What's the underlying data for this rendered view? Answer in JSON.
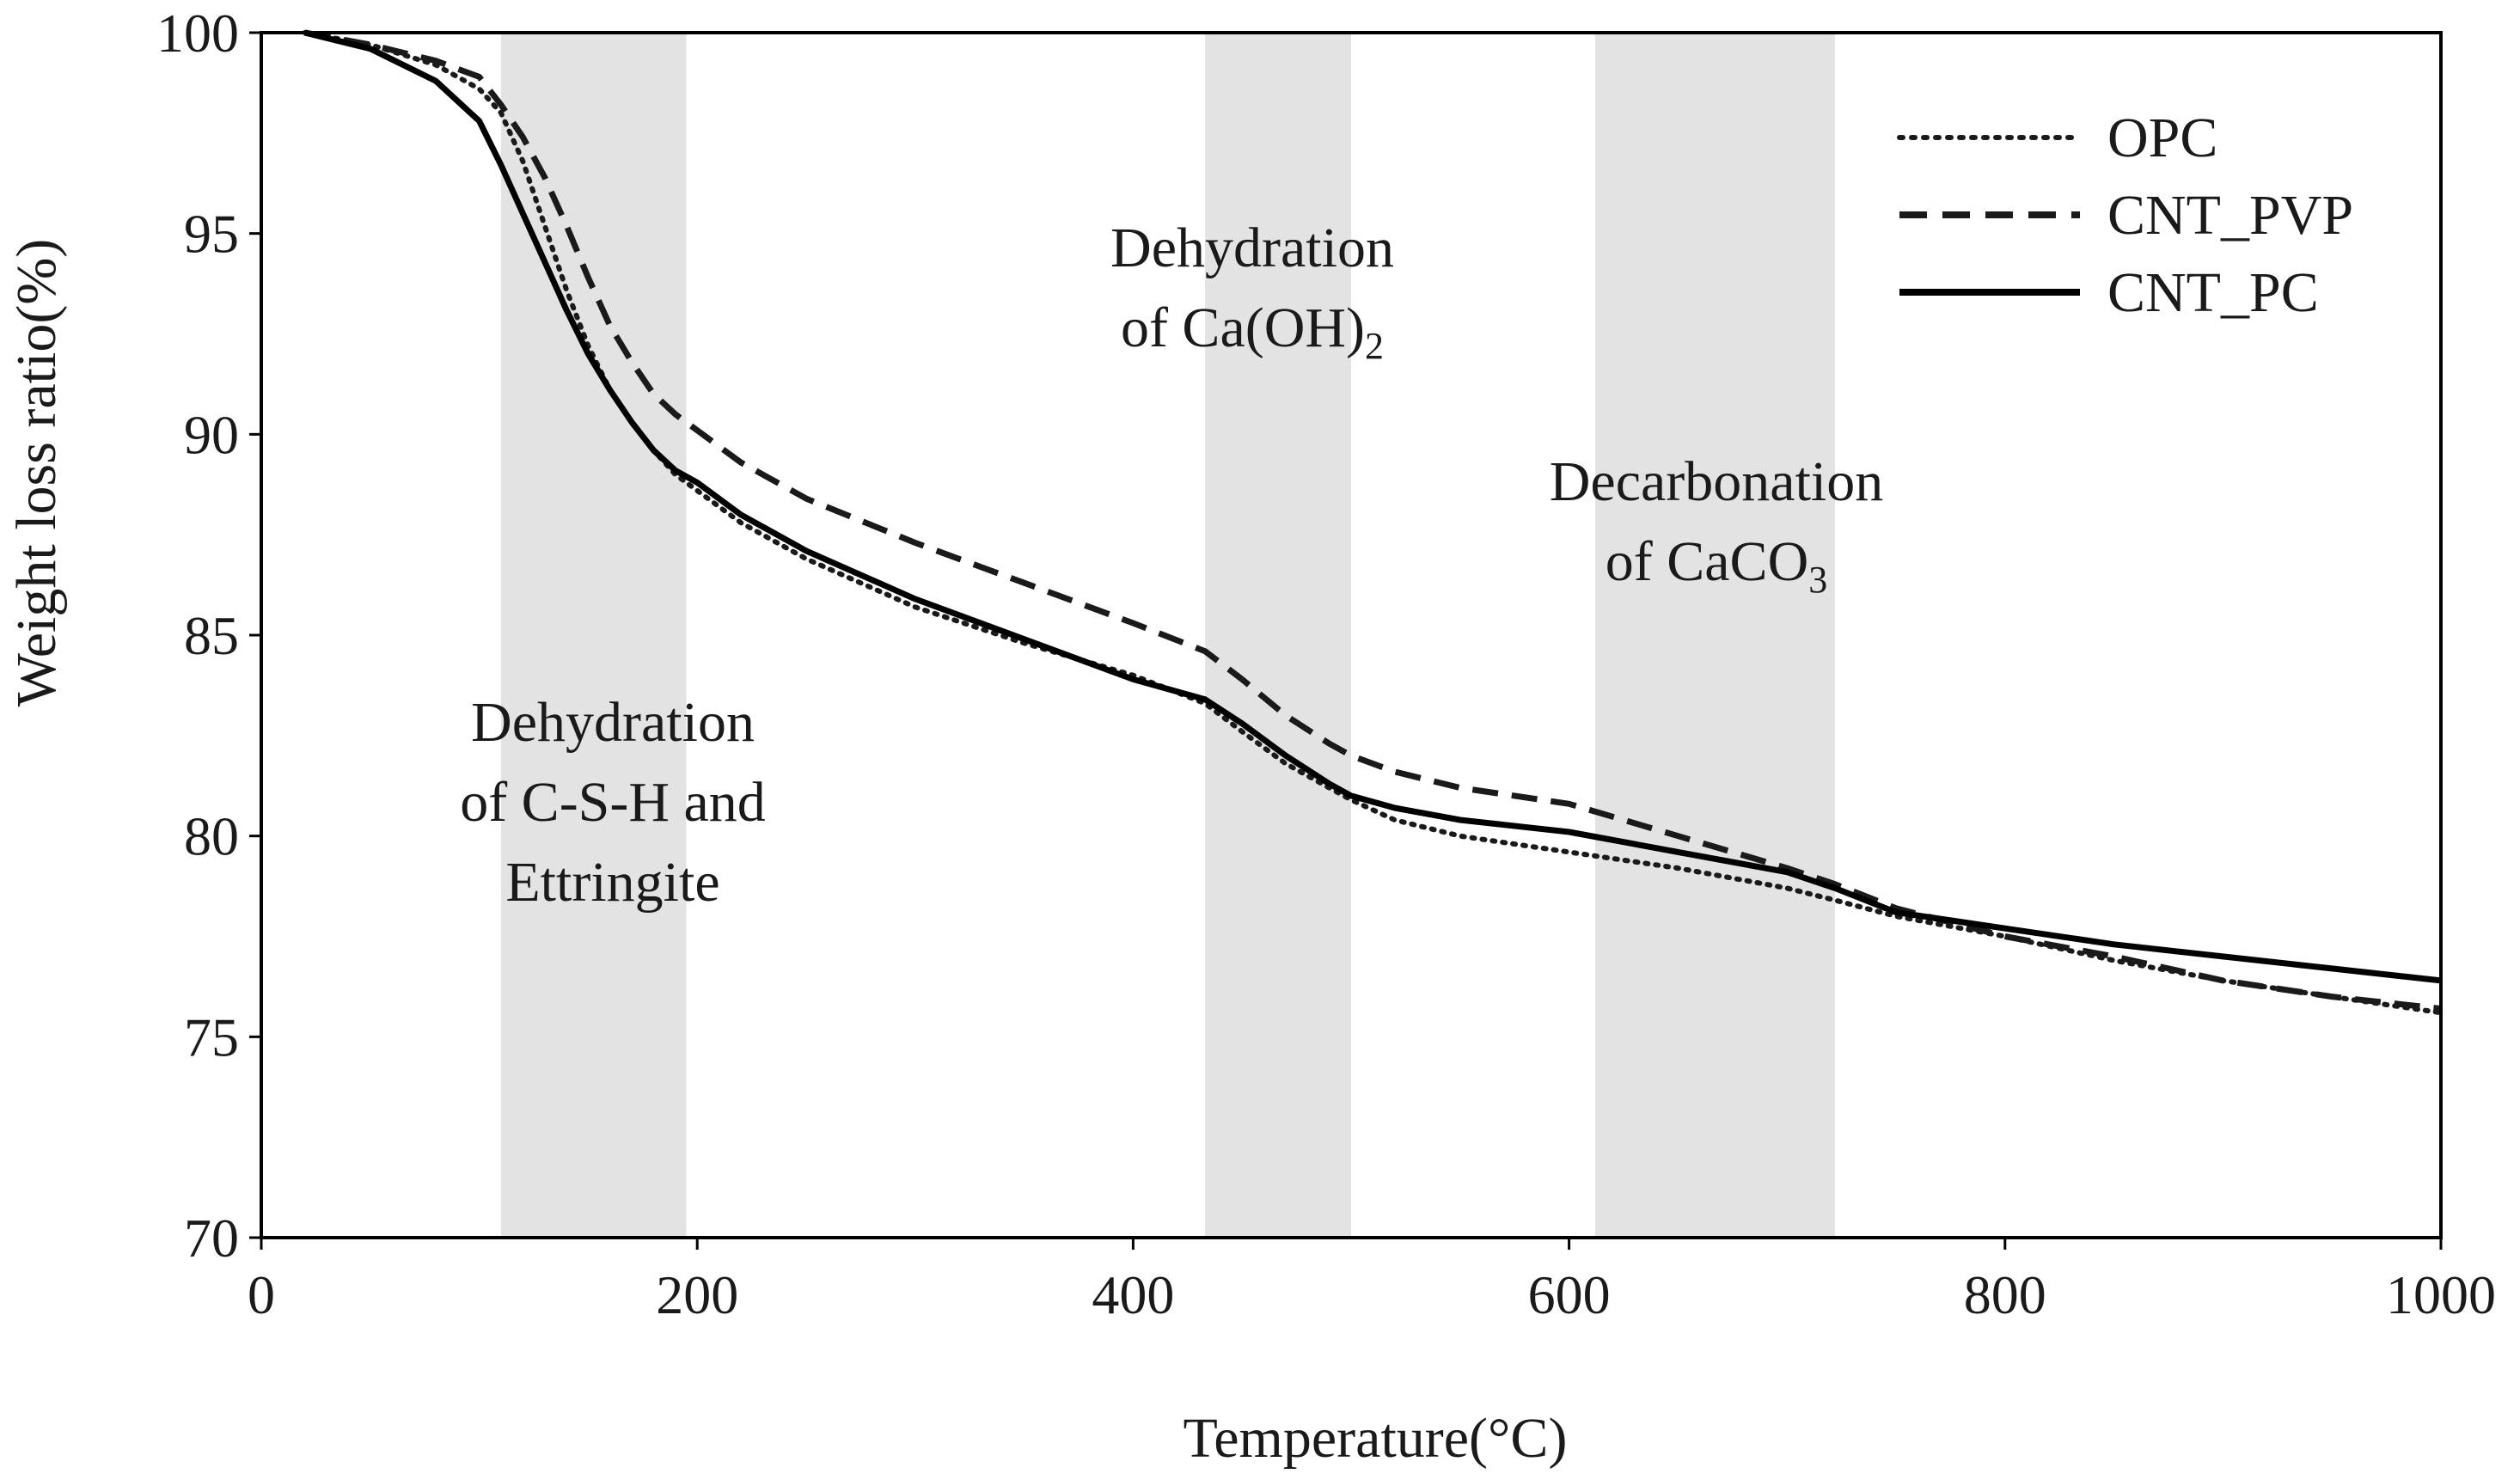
{
  "chart_data": {
    "type": "line",
    "title": "",
    "xlabel": "Temperature(°C)",
    "ylabel": "Weight  loss ratio(%)",
    "xlim": [
      0,
      1000
    ],
    "ylim": [
      70,
      100
    ],
    "xticks": [
      0,
      200,
      400,
      600,
      800,
      1000
    ],
    "yticks": [
      70,
      75,
      80,
      85,
      90,
      95,
      100
    ],
    "grid": false,
    "legend_position": "top-right",
    "shaded_regions": [
      {
        "name": "csh-ettringite",
        "x": [
          110,
          195
        ],
        "label_lines": [
          "Dehydration",
          "of C-S-H and",
          "Ettringite"
        ]
      },
      {
        "name": "caoh2",
        "x": [
          433,
          500
        ],
        "label_lines": [
          "Dehydration",
          "of Ca(OH)",
          "2"
        ]
      },
      {
        "name": "caco3",
        "x": [
          612,
          722
        ],
        "label_lines": [
          "Decarbonation",
          "of CaCO",
          "3"
        ]
      }
    ],
    "series": [
      {
        "name": "OPC",
        "style": "dotted",
        "color": "#1a1a1a",
        "x": [
          20,
          50,
          80,
          100,
          110,
          120,
          130,
          140,
          150,
          160,
          170,
          180,
          190,
          200,
          220,
          250,
          300,
          350,
          400,
          433,
          450,
          470,
          490,
          500,
          520,
          550,
          600,
          650,
          700,
          722,
          750,
          800,
          850,
          900,
          950,
          1000
        ],
        "y": [
          100,
          99.7,
          99.2,
          98.6,
          98.0,
          96.8,
          95.2,
          93.6,
          92.2,
          91.1,
          90.3,
          89.6,
          89.0,
          88.6,
          87.8,
          86.9,
          85.7,
          84.8,
          84.0,
          83.3,
          82.6,
          81.8,
          81.2,
          80.9,
          80.4,
          80.0,
          79.6,
          79.2,
          78.7,
          78.4,
          78.0,
          77.5,
          76.9,
          76.4,
          76.0,
          75.6
        ]
      },
      {
        "name": "CNT_PVP",
        "style": "dashed",
        "color": "#1a1a1a",
        "x": [
          20,
          50,
          80,
          100,
          110,
          120,
          130,
          140,
          150,
          160,
          170,
          180,
          190,
          200,
          220,
          250,
          300,
          350,
          400,
          433,
          450,
          470,
          490,
          500,
          520,
          550,
          600,
          650,
          700,
          722,
          750,
          800,
          850,
          900,
          950,
          1000
        ],
        "y": [
          100,
          99.7,
          99.3,
          98.9,
          98.2,
          97.4,
          96.4,
          95.2,
          93.9,
          92.7,
          91.8,
          91.0,
          90.5,
          90.1,
          89.3,
          88.4,
          87.3,
          86.3,
          85.3,
          84.6,
          83.9,
          83.0,
          82.3,
          82.0,
          81.6,
          81.2,
          80.8,
          80.0,
          79.2,
          78.8,
          78.2,
          77.5,
          77.0,
          76.4,
          76.0,
          75.7
        ]
      },
      {
        "name": "CNT_PC",
        "style": "solid",
        "color": "#000000",
        "x": [
          20,
          50,
          80,
          100,
          110,
          120,
          130,
          140,
          150,
          160,
          170,
          180,
          190,
          200,
          220,
          250,
          300,
          350,
          400,
          433,
          450,
          470,
          490,
          500,
          520,
          550,
          600,
          650,
          700,
          722,
          750,
          800,
          850,
          900,
          950,
          1000
        ],
        "y": [
          100,
          99.6,
          98.8,
          97.8,
          96.7,
          95.5,
          94.3,
          93.1,
          92.0,
          91.1,
          90.3,
          89.6,
          89.1,
          88.8,
          88.0,
          87.1,
          85.9,
          84.9,
          83.9,
          83.4,
          82.8,
          82.0,
          81.3,
          81.0,
          80.7,
          80.4,
          80.1,
          79.6,
          79.1,
          78.7,
          78.1,
          77.7,
          77.3,
          77.0,
          76.7,
          76.4
        ]
      }
    ]
  }
}
